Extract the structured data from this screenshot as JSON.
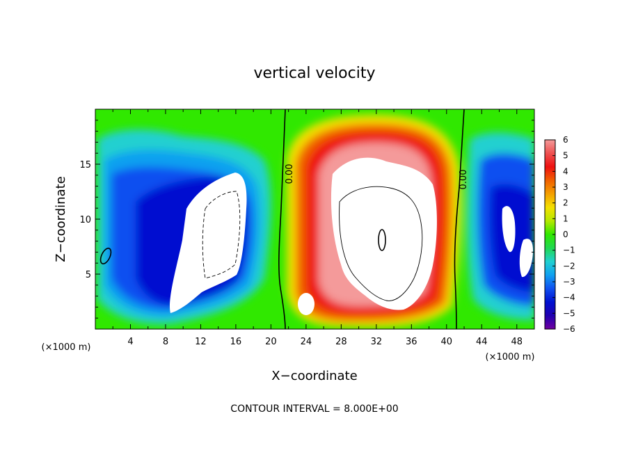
{
  "chart_data": {
    "type": "heatmap",
    "title": "vertical velocity",
    "xlabel": "X−coordinate",
    "ylabel": "Z−coordinate",
    "x_units": "(×1000 m)",
    "x_units_right": "(×1000 m)",
    "xlim": [
      0,
      50
    ],
    "ylim": [
      0,
      20
    ],
    "x_ticks": [
      4,
      8,
      12,
      16,
      20,
      24,
      28,
      32,
      36,
      40,
      44,
      48
    ],
    "y_ticks": [
      5,
      10,
      15
    ],
    "x_tick_labels": [
      "4",
      "8",
      "12",
      "16",
      "20",
      "24",
      "28",
      "32",
      "36",
      "40",
      "44",
      "48"
    ],
    "y_tick_labels": [
      "5",
      "10",
      "15"
    ],
    "colorbar": {
      "range": [
        -6,
        6
      ],
      "ticks": [
        6,
        5,
        4,
        3,
        2,
        1,
        0,
        -1,
        -2,
        -3,
        -4,
        -5,
        -6
      ],
      "tick_labels": [
        "6",
        "5",
        "4",
        "3",
        "2",
        "1",
        "0",
        "−1",
        "−2",
        "−3",
        "−4",
        "−5",
        "−6"
      ],
      "colors": [
        "#f49a9a",
        "#ee5050",
        "#ee1010",
        "#f06000",
        "#f4a000",
        "#f4e000",
        "#b4e800",
        "#30e800",
        "#20d850",
        "#20d0d0",
        "#10a0f0",
        "#1050f0",
        "#0010d0",
        "#2000b0",
        "#7000a0"
      ]
    },
    "zero_contour_labels": [
      "0.00",
      "0.00"
    ],
    "footer": "CONTOUR INTERVAL = 8.000E+00",
    "grid": false,
    "legend": "colorbar-right"
  }
}
